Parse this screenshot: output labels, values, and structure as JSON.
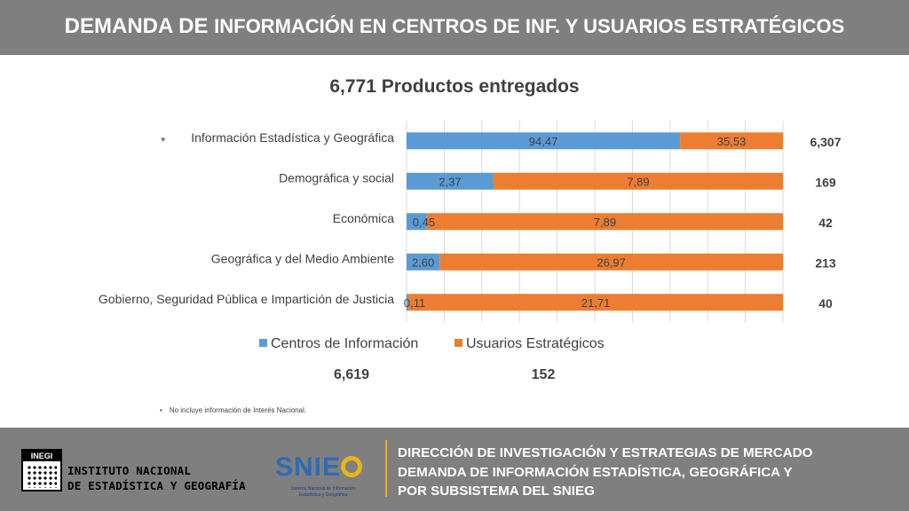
{
  "header": {
    "title_part1": "DEMANDA DE ",
    "title_part2": "INFORMACIÓN EN CENTROS DE INF. Y USUARIOS ESTRATÉGICOS"
  },
  "chart_data": {
    "type": "bar",
    "orientation": "horizontal",
    "stacked": true,
    "normalized_percent": true,
    "title": "6,771 Productos entregados",
    "categories": [
      "Información Estadística y Geográfica",
      "Demográfica y social",
      "Económica",
      "Geográfica y del Medio Ambiente",
      "Gobierno, Seguridad Pública e Impartición de Justicia"
    ],
    "category_markers": [
      "*",
      "",
      "",
      "",
      ""
    ],
    "series": [
      {
        "name": "Centros de Información",
        "color": "#5b9bd5",
        "values": [
          94.47,
          2.37,
          0.45,
          2.6,
          0.11
        ],
        "labels": [
          "94,47",
          "2,37",
          "0,45",
          "2,60",
          "0,11"
        ]
      },
      {
        "name": "Usuarios Estratégicos",
        "color": "#ed7d31",
        "values": [
          35.53,
          7.89,
          7.89,
          26.97,
          21.71
        ],
        "labels": [
          "35,53",
          "7,89",
          "7,89",
          "26,97",
          "21,71"
        ]
      }
    ],
    "row_totals": [
      "6,307",
      "169",
      "42",
      "213",
      "40"
    ],
    "series_totals": [
      "6,619",
      "152"
    ],
    "legend_position": "bottom",
    "grid": true
  },
  "footnote": {
    "bullet": "•",
    "text": "No incluye información de Interés Nacional."
  },
  "footer": {
    "logo_inegi_mark": "INEGI",
    "institute_line1": "INSTITUTO NACIONAL",
    "institute_line2": "DE ESTADÍSTICA Y GEOGRAFÍA",
    "snieg_text": "SNIE",
    "snieg_subtitle_line1": "Sistema Nacional de Información",
    "snieg_subtitle_line2": "Estadística y Geográfica",
    "line1": "DIRECCIÓN DE INVESTIGACIÓN Y ESTRATEGIAS DE MERCADO",
    "line2": "DEMANDA DE INFORMACIÓN ESTADÍSTICA, GEOGRÁFICA Y",
    "line3": "POR SUBSISTEMA DEL SNIEG"
  }
}
